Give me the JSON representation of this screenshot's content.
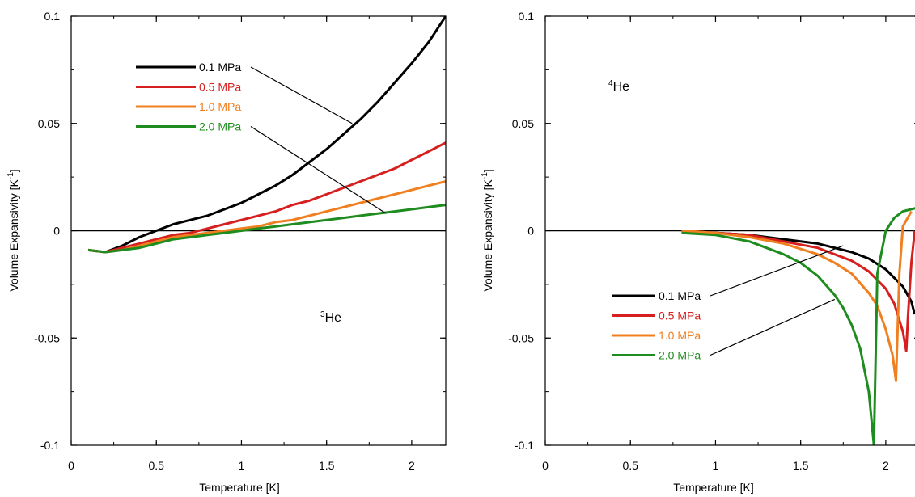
{
  "chart_data": [
    {
      "type": "line",
      "panel_label": "3He",
      "panel_label_sup": "3",
      "panel_label_main": "He",
      "xlabel": "Temperature [K]",
      "ylabel": "Volume Expansivity [K",
      "ylabel_sup": "-1",
      "ylabel_end": "]",
      "xlim": [
        0,
        2.2
      ],
      "ylim": [
        -0.1,
        0.1
      ],
      "xticks": [
        0,
        0.5,
        1,
        1.5,
        2
      ],
      "xtick_labels": [
        "0",
        "0.5",
        "1",
        "1.5",
        "2"
      ],
      "yticks": [
        -0.1,
        -0.05,
        0,
        0.05,
        0.1
      ],
      "ytick_labels": [
        "-0.1",
        "-0.05",
        "0",
        "0.05",
        "0.1"
      ],
      "grid": false,
      "zero_line": true,
      "legend_position": "top-left",
      "series": [
        {
          "name": "0.1 MPa",
          "color": "#000000",
          "x": [
            0.1,
            0.2,
            0.3,
            0.4,
            0.5,
            0.6,
            0.7,
            0.8,
            0.9,
            1.0,
            1.1,
            1.2,
            1.3,
            1.4,
            1.5,
            1.6,
            1.7,
            1.8,
            1.9,
            2.0,
            2.1,
            2.2
          ],
          "y": [
            -0.009,
            -0.01,
            -0.007,
            -0.003,
            0.0,
            0.003,
            0.005,
            0.007,
            0.01,
            0.013,
            0.017,
            0.021,
            0.026,
            0.032,
            0.038,
            0.045,
            0.052,
            0.06,
            0.069,
            0.078,
            0.088,
            0.1
          ]
        },
        {
          "name": "0.5 MPa",
          "color": "#d62020",
          "x": [
            0.1,
            0.2,
            0.3,
            0.4,
            0.5,
            0.6,
            0.7,
            0.8,
            0.9,
            1.0,
            1.1,
            1.2,
            1.3,
            1.4,
            1.5,
            1.6,
            1.7,
            1.8,
            1.9,
            2.0,
            2.1,
            2.2
          ],
          "y": [
            -0.009,
            -0.01,
            -0.008,
            -0.006,
            -0.004,
            -0.002,
            -0.001,
            0.001,
            0.003,
            0.005,
            0.007,
            0.009,
            0.012,
            0.014,
            0.017,
            0.02,
            0.023,
            0.026,
            0.029,
            0.033,
            0.037,
            0.041
          ]
        },
        {
          "name": "1.0 MPa",
          "color": "#f07f20",
          "x": [
            0.1,
            0.2,
            0.3,
            0.4,
            0.5,
            0.6,
            0.7,
            0.8,
            0.9,
            1.0,
            1.1,
            1.2,
            1.3,
            1.4,
            1.5,
            1.6,
            1.7,
            1.8,
            1.9,
            2.0,
            2.1,
            2.2
          ],
          "y": [
            -0.009,
            -0.01,
            -0.009,
            -0.007,
            -0.005,
            -0.003,
            -0.002,
            -0.001,
            0.0,
            0.001,
            0.002,
            0.004,
            0.005,
            0.007,
            0.009,
            0.011,
            0.013,
            0.015,
            0.017,
            0.019,
            0.021,
            0.023
          ]
        },
        {
          "name": "2.0 MPa",
          "color": "#1e8c1e",
          "x": [
            0.1,
            0.2,
            0.3,
            0.4,
            0.5,
            0.6,
            0.7,
            0.8,
            0.9,
            1.0,
            1.1,
            1.2,
            1.3,
            1.4,
            1.5,
            1.6,
            1.7,
            1.8,
            1.9,
            2.0,
            2.1,
            2.2
          ],
          "y": [
            -0.009,
            -0.01,
            -0.009,
            -0.008,
            -0.006,
            -0.004,
            -0.003,
            -0.002,
            -0.001,
            0.0,
            0.001,
            0.002,
            0.003,
            0.004,
            0.005,
            0.006,
            0.007,
            0.008,
            0.009,
            0.01,
            0.011,
            0.012
          ]
        }
      ],
      "legend_leaders": [
        {
          "series": "0.1 MPa",
          "to": [
            1.65,
            0.05
          ]
        },
        {
          "series": "2.0 MPa",
          "to": [
            1.85,
            0.008
          ]
        }
      ]
    },
    {
      "type": "line",
      "panel_label": "4He",
      "panel_label_sup": "4",
      "panel_label_main": "He",
      "xlabel": "Temperature [K]",
      "ylabel": "Volume Expansivity [K",
      "ylabel_sup": "-1",
      "ylabel_end": "]",
      "xlim": [
        0,
        2.2
      ],
      "ylim": [
        -0.1,
        0.1
      ],
      "xticks": [
        0,
        0.5,
        1,
        1.5,
        2
      ],
      "xtick_labels": [
        "0",
        "0.5",
        "1",
        "1.5",
        "2"
      ],
      "yticks": [
        -0.1,
        -0.05,
        0,
        0.05,
        0.1
      ],
      "ytick_labels": [
        "-0.1",
        "-0.05",
        "0",
        "0.05",
        "0.1"
      ],
      "grid": false,
      "zero_line": true,
      "legend_position": "bottom-left",
      "series": [
        {
          "name": "0.1 MPa",
          "color": "#000000",
          "x": [
            0.8,
            1.0,
            1.2,
            1.4,
            1.6,
            1.8,
            1.9,
            2.0,
            2.1,
            2.15,
            2.17
          ],
          "y": [
            0.0,
            -0.001,
            -0.002,
            -0.004,
            -0.006,
            -0.01,
            -0.013,
            -0.018,
            -0.026,
            -0.033,
            -0.039
          ]
        },
        {
          "name": "0.5 MPa",
          "color": "#d62020",
          "x": [
            0.8,
            1.0,
            1.2,
            1.4,
            1.6,
            1.8,
            1.9,
            2.0,
            2.05,
            2.1,
            2.12,
            2.13,
            2.15,
            2.17
          ],
          "y": [
            0.0,
            -0.001,
            -0.002,
            -0.005,
            -0.008,
            -0.014,
            -0.019,
            -0.027,
            -0.034,
            -0.047,
            -0.056,
            -0.04,
            -0.015,
            0.0
          ]
        },
        {
          "name": "1.0 MPa",
          "color": "#f07f20",
          "x": [
            0.8,
            1.0,
            1.2,
            1.4,
            1.6,
            1.7,
            1.8,
            1.9,
            1.95,
            2.0,
            2.04,
            2.06,
            2.08,
            2.1,
            2.15
          ],
          "y": [
            0.0,
            -0.001,
            -0.003,
            -0.006,
            -0.011,
            -0.015,
            -0.02,
            -0.029,
            -0.035,
            -0.046,
            -0.058,
            -0.07,
            -0.02,
            0.002,
            0.009
          ]
        },
        {
          "name": "2.0 MPa",
          "color": "#1e8c1e",
          "x": [
            0.8,
            1.0,
            1.2,
            1.4,
            1.5,
            1.6,
            1.7,
            1.75,
            1.8,
            1.85,
            1.9,
            1.93,
            1.95,
            2.0,
            2.05,
            2.1,
            2.2
          ],
          "y": [
            -0.001,
            -0.002,
            -0.005,
            -0.011,
            -0.015,
            -0.021,
            -0.03,
            -0.036,
            -0.044,
            -0.055,
            -0.075,
            -0.1,
            -0.02,
            0.0,
            0.006,
            0.009,
            0.011
          ]
        }
      ],
      "legend_leaders": [
        {
          "series": "0.1 MPa",
          "to": [
            1.75,
            -0.007
          ]
        },
        {
          "series": "2.0 MPa",
          "to": [
            1.7,
            -0.032
          ]
        }
      ]
    }
  ]
}
